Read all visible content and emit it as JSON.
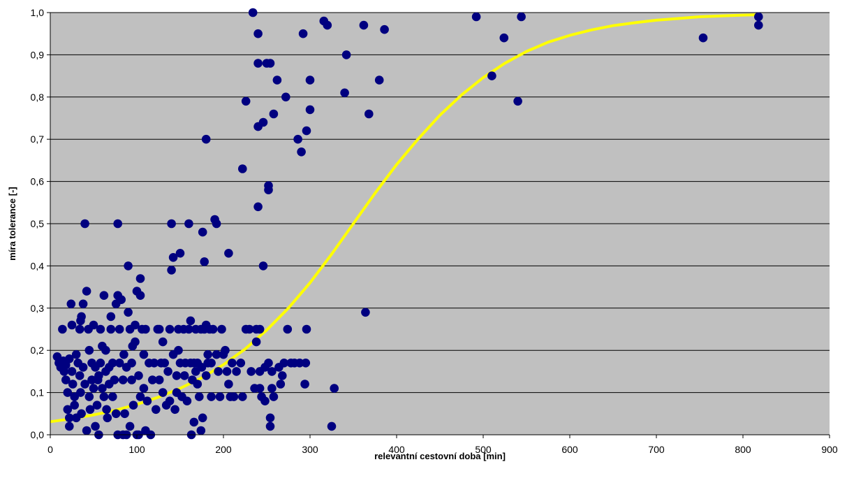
{
  "chart_data": {
    "type": "scatter",
    "xlabel": "relevantní cestovní doba [min]",
    "ylabel": "míra tolerance [-]",
    "xlim": [
      0,
      900
    ],
    "ylim": [
      0,
      1
    ],
    "x_ticks": [
      "0",
      "100",
      "200",
      "300",
      "400",
      "500",
      "600",
      "700",
      "800",
      "900"
    ],
    "y_ticks": [
      "0,0",
      "0,1",
      "0,2",
      "0,3",
      "0,4",
      "0,5",
      "0,6",
      "0,7",
      "0,8",
      "0,9",
      "1,0"
    ],
    "grid": "horizontal",
    "legend": "none",
    "colors": {
      "plot_background": "#c0c0c0",
      "points": "#000080",
      "curve": "#ffff00",
      "grid": "#000000"
    },
    "series": [
      {
        "kind": "points",
        "points": [
          [
            8,
            0.185
          ],
          [
            10,
            0.17
          ],
          [
            12,
            0.16
          ],
          [
            14,
            0.25
          ],
          [
            15,
            0.175
          ],
          [
            16,
            0.15
          ],
          [
            18,
            0.165
          ],
          [
            18,
            0.13
          ],
          [
            20,
            0.1
          ],
          [
            20,
            0.06
          ],
          [
            22,
            0.18
          ],
          [
            22,
            0.04
          ],
          [
            22,
            0.02
          ],
          [
            24,
            0.31
          ],
          [
            25,
            0.26
          ],
          [
            25,
            0.15
          ],
          [
            26,
            0.12
          ],
          [
            28,
            0.09
          ],
          [
            28,
            0.07
          ],
          [
            30,
            0.19
          ],
          [
            30,
            0.04
          ],
          [
            32,
            0.17
          ],
          [
            34,
            0.25
          ],
          [
            34,
            0.14
          ],
          [
            35,
            0.27
          ],
          [
            35,
            0.1
          ],
          [
            36,
            0.28
          ],
          [
            36,
            0.05
          ],
          [
            38,
            0.31
          ],
          [
            38,
            0.16
          ],
          [
            40,
            0.12
          ],
          [
            40,
            0.5
          ],
          [
            42,
            0.34
          ],
          [
            42,
            0.01
          ],
          [
            44,
            0.25
          ],
          [
            45,
            0.2
          ],
          [
            45,
            0.09
          ],
          [
            46,
            0.06
          ],
          [
            48,
            0.17
          ],
          [
            48,
            0.13
          ],
          [
            50,
            0.26
          ],
          [
            50,
            0.11
          ],
          [
            52,
            0.02
          ],
          [
            52,
            0.16
          ],
          [
            54,
            0.07
          ],
          [
            55,
            0.13
          ],
          [
            56,
            0.14
          ],
          [
            56,
            0.0
          ],
          [
            58,
            0.25
          ],
          [
            58,
            0.17
          ],
          [
            60,
            0.21
          ],
          [
            60,
            0.11
          ],
          [
            62,
            0.33
          ],
          [
            62,
            0.09
          ],
          [
            64,
            0.2
          ],
          [
            64,
            0.15
          ],
          [
            65,
            0.06
          ],
          [
            66,
            0.04
          ],
          [
            68,
            0.16
          ],
          [
            68,
            0.12
          ],
          [
            70,
            0.28
          ],
          [
            70,
            0.25
          ],
          [
            72,
            0.17
          ],
          [
            72,
            0.09
          ],
          [
            74,
            0.13
          ],
          [
            76,
            0.31
          ],
          [
            76,
            0.05
          ],
          [
            78,
            0.5
          ],
          [
            78,
            0.33
          ],
          [
            78,
            0.0
          ],
          [
            80,
            0.25
          ],
          [
            80,
            0.17
          ],
          [
            82,
            0.32
          ],
          [
            84,
            0.13
          ],
          [
            84,
            0.0
          ],
          [
            85,
            0.19
          ],
          [
            86,
            0.05
          ],
          [
            88,
            0.16
          ],
          [
            88,
            0.0
          ],
          [
            90,
            0.4
          ],
          [
            90,
            0.29
          ],
          [
            92,
            0.25
          ],
          [
            92,
            0.02
          ],
          [
            94,
            0.17
          ],
          [
            94,
            0.13
          ],
          [
            95,
            0.21
          ],
          [
            96,
            0.07
          ],
          [
            98,
            0.26
          ],
          [
            98,
            0.22
          ],
          [
            100,
            0.34
          ],
          [
            100,
            0.0
          ],
          [
            102,
            0.14
          ],
          [
            102,
            0.0
          ],
          [
            104,
            0.37
          ],
          [
            104,
            0.33
          ],
          [
            104,
            0.09
          ],
          [
            106,
            0.25
          ],
          [
            108,
            0.19
          ],
          [
            108,
            0.11
          ],
          [
            110,
            0.25
          ],
          [
            110,
            0.01
          ],
          [
            112,
            0.08
          ],
          [
            114,
            0.17
          ],
          [
            116,
            0.0
          ],
          [
            118,
            0.13
          ],
          [
            120,
            0.17
          ],
          [
            122,
            0.06
          ],
          [
            124,
            0.25
          ],
          [
            126,
            0.25
          ],
          [
            126,
            0.13
          ],
          [
            128,
            0.17
          ],
          [
            130,
            0.22
          ],
          [
            130,
            0.1
          ],
          [
            132,
            0.17
          ],
          [
            134,
            0.07
          ],
          [
            136,
            0.15
          ],
          [
            138,
            0.25
          ],
          [
            138,
            0.08
          ],
          [
            140,
            0.5
          ],
          [
            140,
            0.39
          ],
          [
            142,
            0.42
          ],
          [
            142,
            0.19
          ],
          [
            144,
            0.06
          ],
          [
            146,
            0.14
          ],
          [
            146,
            0.1
          ],
          [
            148,
            0.25
          ],
          [
            148,
            0.2
          ],
          [
            150,
            0.43
          ],
          [
            150,
            0.17
          ],
          [
            152,
            0.09
          ],
          [
            154,
            0.25
          ],
          [
            155,
            0.14
          ],
          [
            156,
            0.17
          ],
          [
            158,
            0.08
          ],
          [
            160,
            0.5
          ],
          [
            160,
            0.25
          ],
          [
            162,
            0.27
          ],
          [
            162,
            0.17
          ],
          [
            163,
            0.0
          ],
          [
            164,
            0.13
          ],
          [
            166,
            0.17
          ],
          [
            166,
            0.03
          ],
          [
            168,
            0.25
          ],
          [
            168,
            0.15
          ],
          [
            170,
            0.17
          ],
          [
            170,
            0.12
          ],
          [
            172,
            0.09
          ],
          [
            174,
            0.25
          ],
          [
            174,
            0.01
          ],
          [
            175,
            0.16
          ],
          [
            176,
            0.48
          ],
          [
            176,
            0.04
          ],
          [
            178,
            0.41
          ],
          [
            178,
            0.25
          ],
          [
            180,
            0.7
          ],
          [
            180,
            0.26
          ],
          [
            180,
            0.14
          ],
          [
            182,
            0.19
          ],
          [
            182,
            0.17
          ],
          [
            184,
            0.25
          ],
          [
            186,
            0.17
          ],
          [
            186,
            0.09
          ],
          [
            188,
            0.25
          ],
          [
            190,
            0.51
          ],
          [
            192,
            0.5
          ],
          [
            192,
            0.19
          ],
          [
            194,
            0.15
          ],
          [
            196,
            0.09
          ],
          [
            198,
            0.25
          ],
          [
            200,
            0.19
          ],
          [
            202,
            0.2
          ],
          [
            204,
            0.15
          ],
          [
            206,
            0.43
          ],
          [
            206,
            0.12
          ],
          [
            208,
            0.09
          ],
          [
            210,
            0.17
          ],
          [
            212,
            0.09
          ],
          [
            215,
            0.15
          ],
          [
            220,
            0.17
          ],
          [
            222,
            0.63
          ],
          [
            222,
            0.09
          ],
          [
            226,
            0.79
          ],
          [
            226,
            0.25
          ],
          [
            230,
            0.25
          ],
          [
            232,
            0.15
          ],
          [
            234,
            1.0
          ],
          [
            236,
            0.11
          ],
          [
            238,
            0.25
          ],
          [
            238,
            0.22
          ],
          [
            240,
            0.95
          ],
          [
            240,
            0.88
          ],
          [
            240,
            0.73
          ],
          [
            240,
            0.54
          ],
          [
            242,
            0.25
          ],
          [
            242,
            0.15
          ],
          [
            242,
            0.11
          ],
          [
            244,
            0.09
          ],
          [
            246,
            0.74
          ],
          [
            246,
            0.4
          ],
          [
            248,
            0.16
          ],
          [
            248,
            0.08
          ],
          [
            250,
            0.88
          ],
          [
            252,
            0.59
          ],
          [
            252,
            0.58
          ],
          [
            252,
            0.17
          ],
          [
            254,
            0.88
          ],
          [
            254,
            0.04
          ],
          [
            254,
            0.02
          ],
          [
            256,
            0.15
          ],
          [
            256,
            0.11
          ],
          [
            258,
            0.76
          ],
          [
            258,
            0.09
          ],
          [
            262,
            0.84
          ],
          [
            264,
            0.16
          ],
          [
            266,
            0.12
          ],
          [
            268,
            0.14
          ],
          [
            270,
            0.17
          ],
          [
            272,
            0.8
          ],
          [
            274,
            0.25
          ],
          [
            278,
            0.17
          ],
          [
            282,
            0.17
          ],
          [
            286,
            0.7
          ],
          [
            288,
            0.17
          ],
          [
            290,
            0.67
          ],
          [
            292,
            0.95
          ],
          [
            294,
            0.12
          ],
          [
            295,
            0.17
          ],
          [
            296,
            0.72
          ],
          [
            296,
            0.25
          ],
          [
            300,
            0.84
          ],
          [
            300,
            0.77
          ],
          [
            325,
            0.02
          ],
          [
            328,
            0.11
          ],
          [
            316,
            0.98
          ],
          [
            320,
            0.97
          ],
          [
            340,
            0.81
          ],
          [
            342,
            0.9
          ],
          [
            362,
            0.97
          ],
          [
            364,
            0.29
          ],
          [
            368,
            0.76
          ],
          [
            380,
            0.84
          ],
          [
            386,
            0.96
          ],
          [
            492,
            0.99
          ],
          [
            510,
            0.85
          ],
          [
            524,
            0.94
          ],
          [
            540,
            0.79
          ],
          [
            544,
            0.99
          ],
          [
            754,
            0.94
          ],
          [
            818,
            0.97
          ],
          [
            818,
            0.99
          ]
        ]
      },
      {
        "kind": "curve",
        "points": [
          [
            0,
            0.031
          ],
          [
            25,
            0.038
          ],
          [
            50,
            0.047
          ],
          [
            75,
            0.058
          ],
          [
            100,
            0.072
          ],
          [
            125,
            0.089
          ],
          [
            150,
            0.11
          ],
          [
            175,
            0.135
          ],
          [
            200,
            0.166
          ],
          [
            225,
            0.203
          ],
          [
            250,
            0.248
          ],
          [
            275,
            0.3
          ],
          [
            300,
            0.36
          ],
          [
            325,
            0.428
          ],
          [
            350,
            0.5
          ],
          [
            375,
            0.572
          ],
          [
            400,
            0.64
          ],
          [
            425,
            0.701
          ],
          [
            450,
            0.757
          ],
          [
            475,
            0.805
          ],
          [
            500,
            0.846
          ],
          [
            525,
            0.88
          ],
          [
            550,
            0.908
          ],
          [
            575,
            0.93
          ],
          [
            600,
            0.946
          ],
          [
            625,
            0.959
          ],
          [
            650,
            0.969
          ],
          [
            675,
            0.976
          ],
          [
            700,
            0.982
          ],
          [
            725,
            0.986
          ],
          [
            750,
            0.99
          ],
          [
            775,
            0.992
          ],
          [
            800,
            0.994
          ],
          [
            818,
            0.995
          ]
        ]
      }
    ]
  }
}
